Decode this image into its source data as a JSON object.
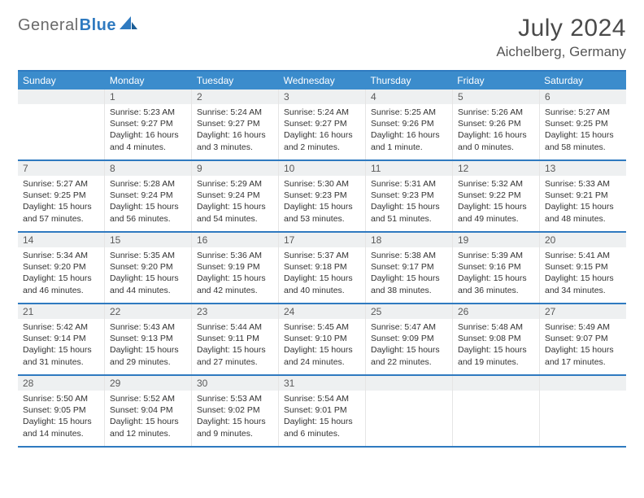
{
  "brand": {
    "part1": "General",
    "part2": "Blue"
  },
  "title": "July 2024",
  "location": "Aichelberg, Germany",
  "colors": {
    "accent": "#2f7ac0",
    "header_bg": "#3b8ccc",
    "daybar_bg": "#eef0f1",
    "text": "#333333",
    "logo_gray": "#6a6a6a"
  },
  "fonts": {
    "title_size_pt": 30,
    "location_size_pt": 17,
    "body_size_pt": 10.5,
    "dow_size_pt": 12
  },
  "layout": {
    "columns": 7,
    "rows": 5,
    "first_weekday_index": 1
  },
  "dow": [
    "Sunday",
    "Monday",
    "Tuesday",
    "Wednesday",
    "Thursday",
    "Friday",
    "Saturday"
  ],
  "labels": {
    "sunrise": "Sunrise:",
    "sunset": "Sunset:",
    "daylight": "Daylight:"
  },
  "days": [
    {
      "n": 1,
      "sr": "5:23 AM",
      "ss": "9:27 PM",
      "dl": "16 hours and 4 minutes."
    },
    {
      "n": 2,
      "sr": "5:24 AM",
      "ss": "9:27 PM",
      "dl": "16 hours and 3 minutes."
    },
    {
      "n": 3,
      "sr": "5:24 AM",
      "ss": "9:27 PM",
      "dl": "16 hours and 2 minutes."
    },
    {
      "n": 4,
      "sr": "5:25 AM",
      "ss": "9:26 PM",
      "dl": "16 hours and 1 minute."
    },
    {
      "n": 5,
      "sr": "5:26 AM",
      "ss": "9:26 PM",
      "dl": "16 hours and 0 minutes."
    },
    {
      "n": 6,
      "sr": "5:27 AM",
      "ss": "9:25 PM",
      "dl": "15 hours and 58 minutes."
    },
    {
      "n": 7,
      "sr": "5:27 AM",
      "ss": "9:25 PM",
      "dl": "15 hours and 57 minutes."
    },
    {
      "n": 8,
      "sr": "5:28 AM",
      "ss": "9:24 PM",
      "dl": "15 hours and 56 minutes."
    },
    {
      "n": 9,
      "sr": "5:29 AM",
      "ss": "9:24 PM",
      "dl": "15 hours and 54 minutes."
    },
    {
      "n": 10,
      "sr": "5:30 AM",
      "ss": "9:23 PM",
      "dl": "15 hours and 53 minutes."
    },
    {
      "n": 11,
      "sr": "5:31 AM",
      "ss": "9:23 PM",
      "dl": "15 hours and 51 minutes."
    },
    {
      "n": 12,
      "sr": "5:32 AM",
      "ss": "9:22 PM",
      "dl": "15 hours and 49 minutes."
    },
    {
      "n": 13,
      "sr": "5:33 AM",
      "ss": "9:21 PM",
      "dl": "15 hours and 48 minutes."
    },
    {
      "n": 14,
      "sr": "5:34 AM",
      "ss": "9:20 PM",
      "dl": "15 hours and 46 minutes."
    },
    {
      "n": 15,
      "sr": "5:35 AM",
      "ss": "9:20 PM",
      "dl": "15 hours and 44 minutes."
    },
    {
      "n": 16,
      "sr": "5:36 AM",
      "ss": "9:19 PM",
      "dl": "15 hours and 42 minutes."
    },
    {
      "n": 17,
      "sr": "5:37 AM",
      "ss": "9:18 PM",
      "dl": "15 hours and 40 minutes."
    },
    {
      "n": 18,
      "sr": "5:38 AM",
      "ss": "9:17 PM",
      "dl": "15 hours and 38 minutes."
    },
    {
      "n": 19,
      "sr": "5:39 AM",
      "ss": "9:16 PM",
      "dl": "15 hours and 36 minutes."
    },
    {
      "n": 20,
      "sr": "5:41 AM",
      "ss": "9:15 PM",
      "dl": "15 hours and 34 minutes."
    },
    {
      "n": 21,
      "sr": "5:42 AM",
      "ss": "9:14 PM",
      "dl": "15 hours and 31 minutes."
    },
    {
      "n": 22,
      "sr": "5:43 AM",
      "ss": "9:13 PM",
      "dl": "15 hours and 29 minutes."
    },
    {
      "n": 23,
      "sr": "5:44 AM",
      "ss": "9:11 PM",
      "dl": "15 hours and 27 minutes."
    },
    {
      "n": 24,
      "sr": "5:45 AM",
      "ss": "9:10 PM",
      "dl": "15 hours and 24 minutes."
    },
    {
      "n": 25,
      "sr": "5:47 AM",
      "ss": "9:09 PM",
      "dl": "15 hours and 22 minutes."
    },
    {
      "n": 26,
      "sr": "5:48 AM",
      "ss": "9:08 PM",
      "dl": "15 hours and 19 minutes."
    },
    {
      "n": 27,
      "sr": "5:49 AM",
      "ss": "9:07 PM",
      "dl": "15 hours and 17 minutes."
    },
    {
      "n": 28,
      "sr": "5:50 AM",
      "ss": "9:05 PM",
      "dl": "15 hours and 14 minutes."
    },
    {
      "n": 29,
      "sr": "5:52 AM",
      "ss": "9:04 PM",
      "dl": "15 hours and 12 minutes."
    },
    {
      "n": 30,
      "sr": "5:53 AM",
      "ss": "9:02 PM",
      "dl": "15 hours and 9 minutes."
    },
    {
      "n": 31,
      "sr": "5:54 AM",
      "ss": "9:01 PM",
      "dl": "15 hours and 6 minutes."
    }
  ]
}
